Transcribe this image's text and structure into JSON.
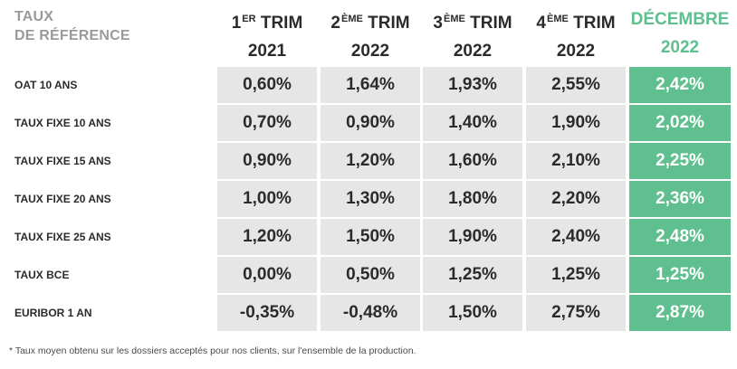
{
  "header": {
    "ref_label_line1": "TAUX",
    "ref_label_line2": "DE RÉFÉRENCE"
  },
  "columns": [
    {
      "num": "1",
      "sup": "ER",
      "word": "TRIM",
      "year": "2021",
      "highlight": false
    },
    {
      "num": "2",
      "sup": "ÈME",
      "word": "TRIM",
      "year": "2022",
      "highlight": false
    },
    {
      "num": "3",
      "sup": "ÈME",
      "word": "TRIM",
      "year": "2022",
      "highlight": false
    },
    {
      "num": "4",
      "sup": "ÈME",
      "word": "TRIM",
      "year": "2022",
      "highlight": false
    },
    {
      "num": "",
      "sup": "",
      "word": "DÉCEMBRE",
      "year": "2022",
      "highlight": true
    }
  ],
  "rows": [
    {
      "label": "OAT 10 ANS",
      "values": [
        "0,60%",
        "1,64%",
        "1,93%",
        "2,55%",
        "2,42%"
      ]
    },
    {
      "label": "TAUX FIXE 10 ANS",
      "values": [
        "0,70%",
        "0,90%",
        "1,40%",
        "1,90%",
        "2,02%"
      ]
    },
    {
      "label": "TAUX FIXE 15 ANS",
      "values": [
        "0,90%",
        "1,20%",
        "1,60%",
        "2,10%",
        "2,25%"
      ]
    },
    {
      "label": "TAUX FIXE 20 ANS",
      "values": [
        "1,00%",
        "1,30%",
        "1,80%",
        "2,20%",
        "2,36%"
      ]
    },
    {
      "label": "TAUX FIXE 25 ANS",
      "values": [
        "1,20%",
        "1,50%",
        "1,90%",
        "2,40%",
        "2,48%"
      ]
    },
    {
      "label": "TAUX BCE",
      "values": [
        "0,00%",
        "0,50%",
        "1,25%",
        "1,25%",
        "1,25%"
      ]
    },
    {
      "label": "EURIBOR 1 AN",
      "values": [
        "-0,35%",
        "-0,48%",
        "1,50%",
        "2,75%",
        "2,87%"
      ]
    }
  ],
  "colors": {
    "accent": "#5fbf8e",
    "cell_bg": "#e6e6e6",
    "text": "#2b2b2b",
    "muted": "#9a9a9a"
  },
  "footnote": "* Taux moyen obtenu sur les dossiers acceptés pour nos clients, sur l'ensemble de la production."
}
